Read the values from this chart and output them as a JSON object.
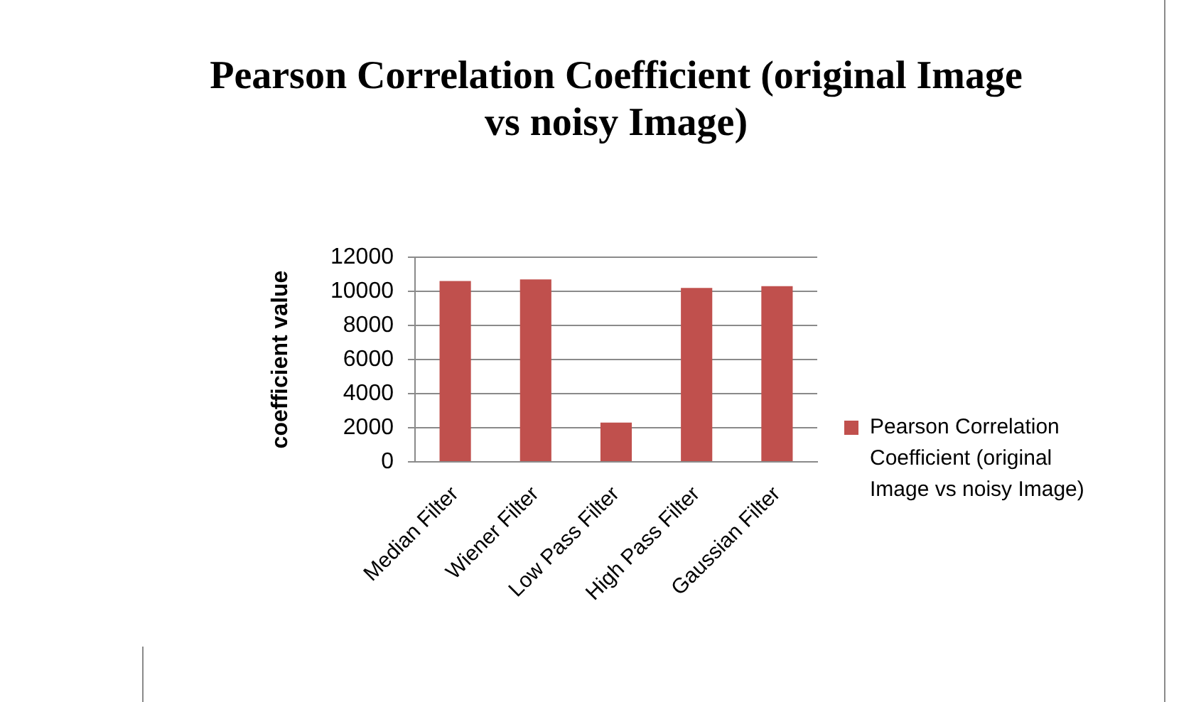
{
  "chart_data": {
    "type": "bar",
    "title": "Pearson Correlation Coefficient (original Image vs noisy Image)",
    "ylabel": "coefficient value",
    "categories": [
      "Median Filter",
      "Wiener Filter",
      "Low Pass Filter",
      "High Pass Filter",
      "Gaussian Filter"
    ],
    "series": [
      {
        "name": "Pearson Correlation Coefficient (original Image vs noisy Image)",
        "color": "#c0504d",
        "values": [
          10600,
          10700,
          2300,
          10200,
          10300
        ]
      }
    ],
    "ylim": [
      0,
      12000
    ],
    "yticks": [
      0,
      2000,
      4000,
      6000,
      8000,
      10000,
      12000
    ],
    "grid": "y",
    "legend": "right"
  }
}
